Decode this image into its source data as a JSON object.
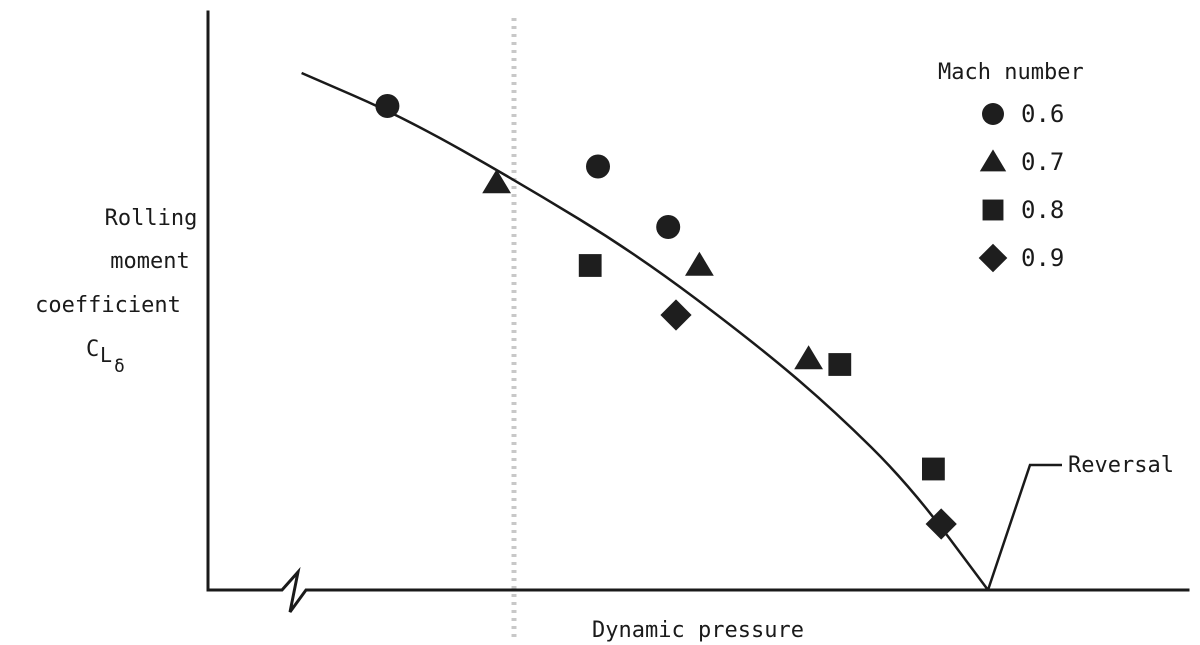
{
  "chart_data": {
    "type": "scatter",
    "title": "",
    "xlabel": "Dynamic pressure",
    "ylabel_lines": [
      "Rolling",
      "moment",
      "coefficient"
    ],
    "ylabel_symbol": "C",
    "ylabel_symbol_sub": "L",
    "ylabel_symbol_subsub": "δ",
    "legend_title": "Mach number",
    "legend_position": "top-right",
    "xlim": [
      0,
      100
    ],
    "ylim": [
      0,
      100
    ],
    "grid": false,
    "series": [
      {
        "name": "0.6",
        "marker": "circle",
        "points": [
          [
            23,
            88
          ],
          [
            50,
            77
          ],
          [
            59,
            66
          ]
        ]
      },
      {
        "name": "0.7",
        "marker": "triangle",
        "points": [
          [
            37,
            74
          ],
          [
            63,
            59
          ],
          [
            77,
            42
          ]
        ]
      },
      {
        "name": "0.8",
        "marker": "square",
        "points": [
          [
            49,
            59
          ],
          [
            81,
            41
          ],
          [
            93,
            22
          ]
        ]
      },
      {
        "name": "0.9",
        "marker": "diamond",
        "points": [
          [
            60,
            50
          ],
          [
            94,
            12
          ]
        ]
      }
    ],
    "fit_curve": [
      [
        12,
        94
      ],
      [
        25,
        86
      ],
      [
        40,
        74
      ],
      [
        55,
        61
      ],
      [
        70,
        45
      ],
      [
        80,
        33
      ],
      [
        90,
        19
      ],
      [
        100,
        0
      ]
    ],
    "annotation": {
      "text": "Reversal",
      "x": 100,
      "y": 0
    }
  }
}
